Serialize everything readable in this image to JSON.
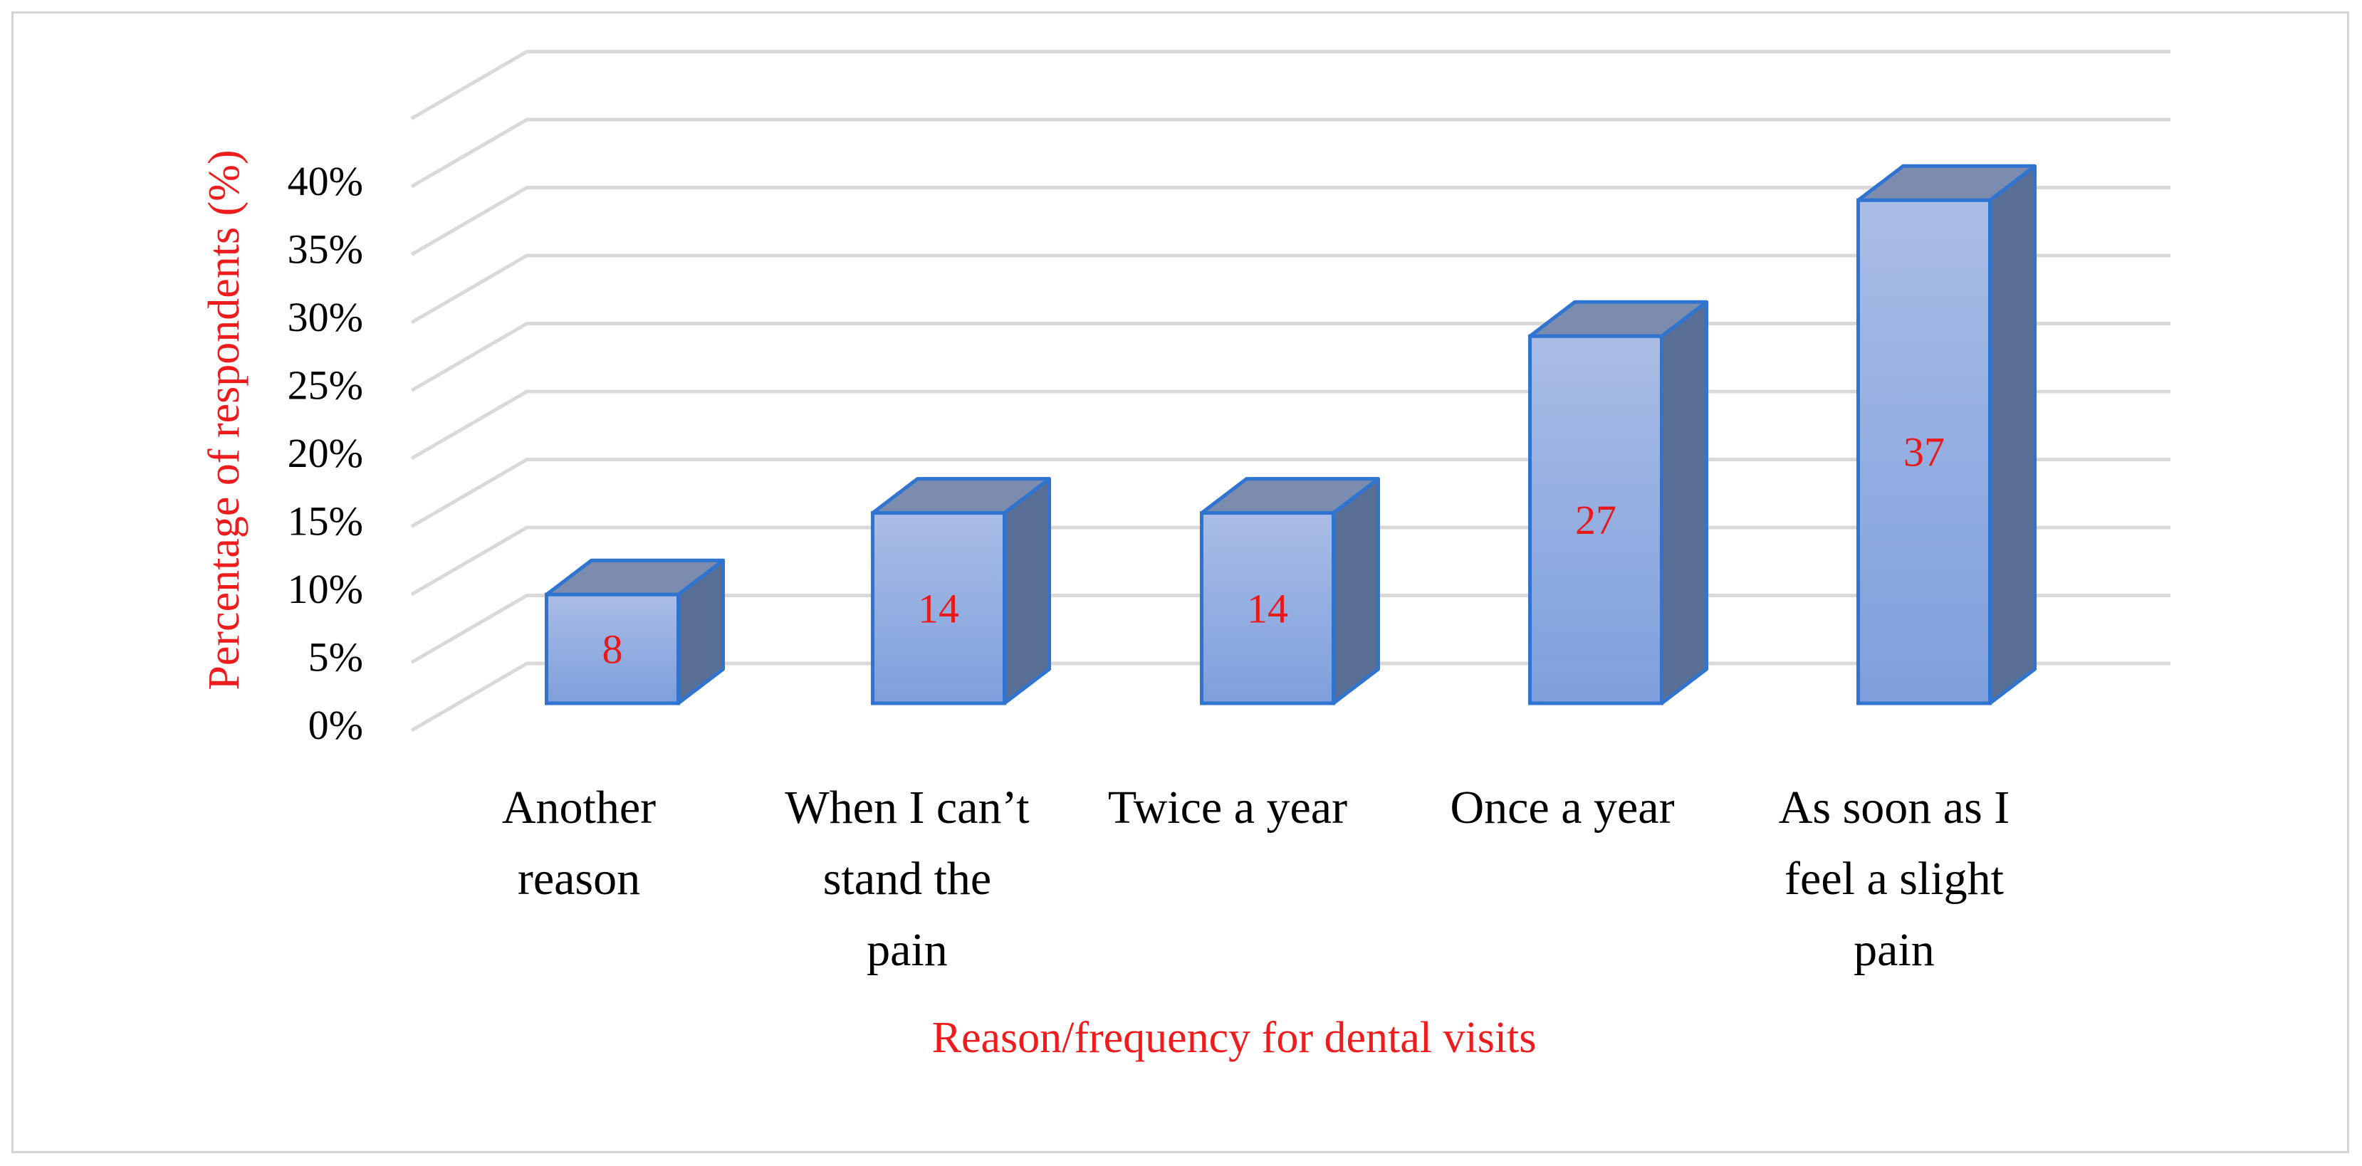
{
  "chart_data": {
    "type": "bar",
    "style": "3d-column",
    "title": "",
    "xlabel": "Reason/frequency for dental visits",
    "ylabel": "Percentage of respondents (%)",
    "categories": [
      [
        "Another",
        "reason"
      ],
      [
        "When I can’t",
        "stand the",
        "pain"
      ],
      [
        "Twice a year"
      ],
      [
        "Once a year"
      ],
      [
        "As soon as I",
        "feel a slight",
        "pain"
      ]
    ],
    "values": [
      8,
      14,
      14,
      27,
      37
    ],
    "data_labels": [
      "8",
      "14",
      "14",
      "27",
      "37"
    ],
    "y_ticks": [
      "0%",
      "5%",
      "10%",
      "15%",
      "20%",
      "25%",
      "30%",
      "35%",
      "40%"
    ],
    "ylim": [
      0,
      40
    ],
    "grid": true,
    "legend": "none",
    "colors": {
      "bar_front_top": "#a9bde6",
      "bar_front_bottom": "#7e9fdc",
      "bar_side": "#5a6f96",
      "bar_top": "#7b8cae",
      "bar_edge": "#2f74d0",
      "gridline": "#d9d9d9",
      "axis_title": "#ee1c1c",
      "data_label": "#e8191b",
      "tick_text": "#000000"
    }
  }
}
